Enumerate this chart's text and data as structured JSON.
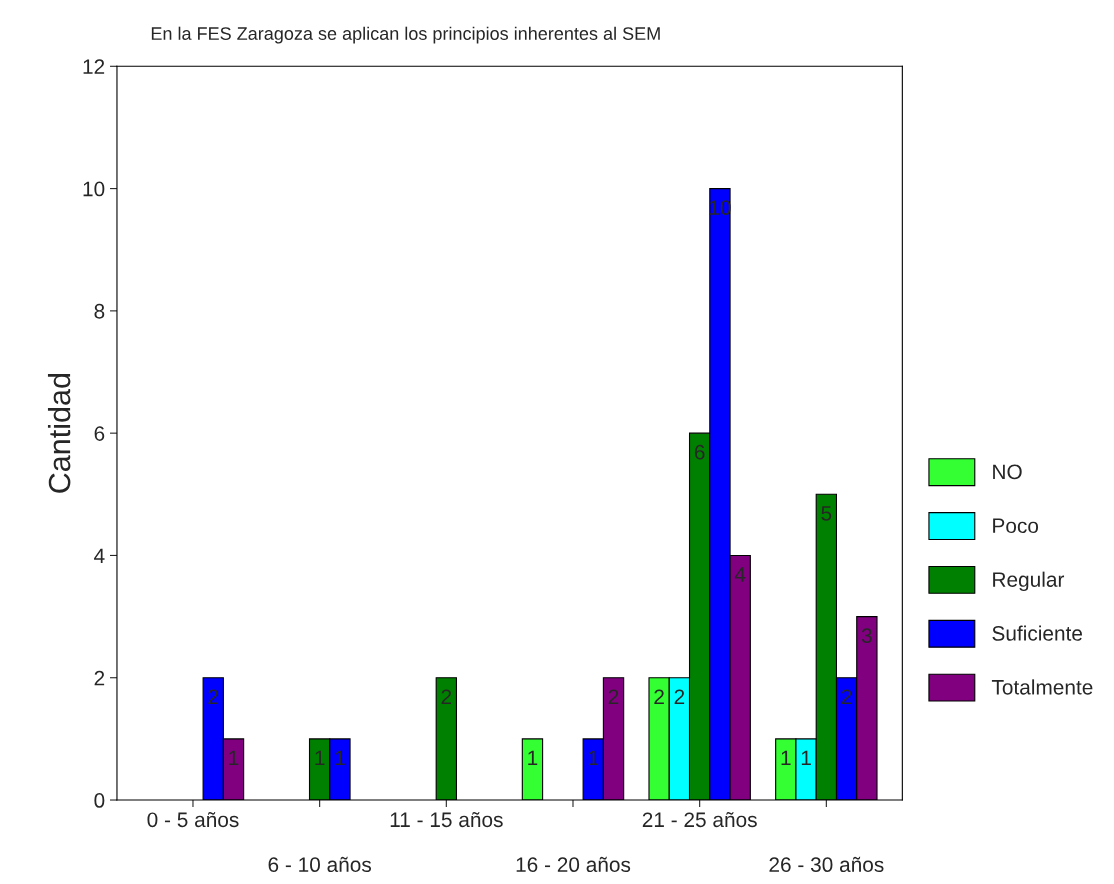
{
  "chart_data": {
    "type": "bar",
    "title": "En la FES Zaragoza se aplican los principios inherentes al SEM",
    "ylabel": "Cantidad",
    "categories": [
      "0 - 5 años",
      "6 - 10 años",
      "11 - 15 años",
      "16 - 20 años",
      "21 - 25 años",
      "26 - 30 años"
    ],
    "series": [
      {
        "name": "NO",
        "color": "#33ff33",
        "values": [
          null,
          null,
          null,
          1,
          2,
          1
        ]
      },
      {
        "name": "Poco",
        "color": "#00ffff",
        "values": [
          null,
          null,
          null,
          null,
          2,
          1
        ]
      },
      {
        "name": "Regular",
        "color": "#008000",
        "values": [
          null,
          1,
          2,
          null,
          6,
          5
        ]
      },
      {
        "name": "Suficiente",
        "color": "#0000ff",
        "values": [
          2,
          1,
          null,
          1,
          10,
          2
        ]
      },
      {
        "name": "Totalmente",
        "color": "#800080",
        "values": [
          1,
          null,
          null,
          2,
          4,
          3
        ]
      }
    ],
    "ylim": [
      0,
      12
    ],
    "yticks": [
      0,
      2,
      4,
      6,
      8,
      10,
      12
    ],
    "data_labels": true,
    "legend": "right",
    "grid": false
  }
}
